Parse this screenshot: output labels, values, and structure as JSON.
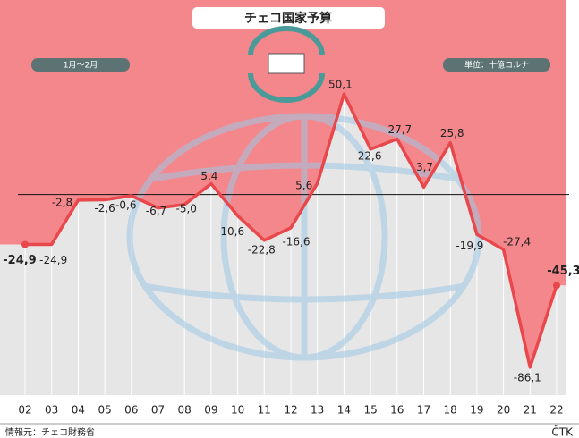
{
  "chart_data": {
    "type": "line",
    "title": "チェコ国家予算",
    "subtitle": "1月～2月",
    "unit_label": "単位：十億コルナ",
    "source": "情報元：チェコ財務省",
    "credit": "ČTK",
    "categories": [
      "02",
      "03",
      "04",
      "05",
      "06",
      "07",
      "08",
      "09",
      "10",
      "11",
      "12",
      "13",
      "14",
      "15",
      "16",
      "17",
      "18",
      "19",
      "20",
      "21",
      "22"
    ],
    "series": [
      {
        "name": "国家予算",
        "color": "#e8474c",
        "values": [
          -24.9,
          -24.9,
          -2.8,
          -2.6,
          -0.6,
          -6.7,
          -5.0,
          5.4,
          -10.6,
          -22.8,
          -16.6,
          5.6,
          50.1,
          22.6,
          27.7,
          3.7,
          25.8,
          -19.9,
          -27.4,
          -86.1,
          -45.3
        ],
        "value_labels": [
          "-24,9",
          "-24,9",
          "-2,8",
          "-2,6",
          "-0,6",
          "-6,7",
          "-5,0",
          "5,4",
          "-10,6",
          "-22,8",
          "-16,6",
          "5,6",
          "50,1",
          "22,6",
          "27,7",
          "3,7",
          "25,8",
          "-19,9",
          "-27,4",
          "-86,1",
          "-45,3"
        ]
      }
    ],
    "ylim": [
      -100,
      97
    ],
    "above_color": "#f4878b",
    "below_color": "#e6e6e6"
  }
}
